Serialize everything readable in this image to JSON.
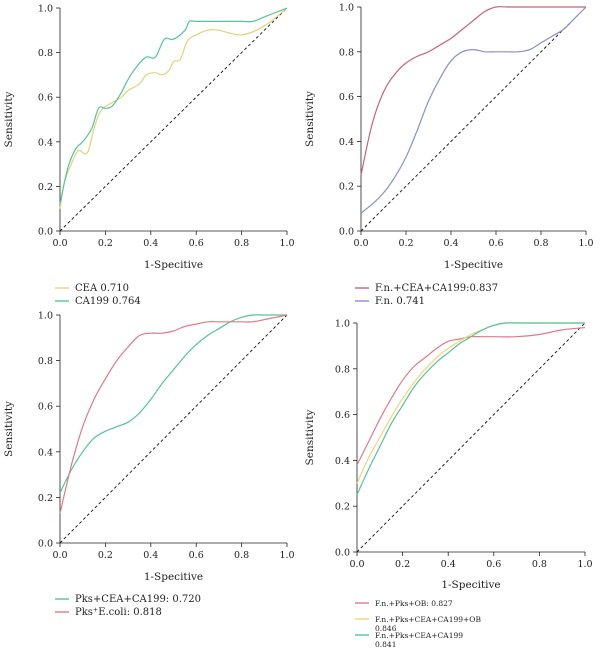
{
  "chart_data": [
    {
      "type": "line",
      "xlabel": "1-Specitive",
      "ylabel": "Sensitivity",
      "xlim": [
        0,
        1
      ],
      "ylim": [
        0,
        1
      ],
      "ticks": [
        "0.0",
        "0.2",
        "0.4",
        "0.6",
        "0.8",
        "1.0"
      ],
      "diagonal": true,
      "series": [
        {
          "name": "CEA 0.710",
          "color": "#e3d27a",
          "x": [
            0,
            0.02,
            0.05,
            0.08,
            0.12,
            0.15,
            0.18,
            0.22,
            0.27,
            0.3,
            0.35,
            0.38,
            0.42,
            0.45,
            0.48,
            0.5,
            0.53,
            0.56,
            0.6,
            0.65,
            0.7,
            0.8,
            0.9,
            1.0
          ],
          "y": [
            0.1,
            0.22,
            0.3,
            0.36,
            0.35,
            0.46,
            0.54,
            0.57,
            0.6,
            0.63,
            0.66,
            0.7,
            0.71,
            0.7,
            0.72,
            0.76,
            0.77,
            0.85,
            0.88,
            0.9,
            0.9,
            0.88,
            0.92,
            1.0
          ]
        },
        {
          "name": "CA199 0.764",
          "color": "#54c49a",
          "x": [
            0,
            0.02,
            0.04,
            0.07,
            0.1,
            0.14,
            0.17,
            0.2,
            0.23,
            0.27,
            0.3,
            0.34,
            0.38,
            0.42,
            0.46,
            0.5,
            0.55,
            0.57,
            0.6,
            0.7,
            0.8,
            0.85,
            0.9,
            0.95,
            1.0
          ],
          "y": [
            0.12,
            0.22,
            0.3,
            0.37,
            0.4,
            0.46,
            0.55,
            0.55,
            0.56,
            0.62,
            0.68,
            0.74,
            0.78,
            0.78,
            0.86,
            0.86,
            0.9,
            0.94,
            0.94,
            0.94,
            0.94,
            0.94,
            0.96,
            0.98,
            1.0
          ]
        }
      ]
    },
    {
      "type": "line",
      "xlabel": "1-Specitive",
      "ylabel": "Sensitivity",
      "xlim": [
        0,
        1
      ],
      "ylim": [
        0,
        1
      ],
      "ticks": [
        "0.0",
        "0.2",
        "0.4",
        "0.6",
        "0.8",
        "1.0"
      ],
      "diagonal": true,
      "series": [
        {
          "name": "F.n.+CEA+CA199:0.837",
          "color": "#c8627a",
          "x": [
            0,
            0.05,
            0.1,
            0.15,
            0.2,
            0.25,
            0.3,
            0.35,
            0.4,
            0.45,
            0.5,
            0.55,
            0.6,
            0.65,
            0.7,
            0.8,
            0.9,
            1.0
          ],
          "y": [
            0.25,
            0.48,
            0.62,
            0.7,
            0.75,
            0.78,
            0.8,
            0.83,
            0.86,
            0.9,
            0.94,
            0.98,
            1.0,
            1.0,
            1.0,
            1.0,
            1.0,
            1.0
          ]
        },
        {
          "name": "F.n. 0.741",
          "color": "#8a8fc8",
          "x": [
            0,
            0.05,
            0.1,
            0.15,
            0.2,
            0.25,
            0.3,
            0.35,
            0.4,
            0.45,
            0.5,
            0.55,
            0.6,
            0.65,
            0.7,
            0.75,
            0.8,
            0.85,
            0.9,
            0.95,
            1.0
          ],
          "y": [
            0.08,
            0.12,
            0.17,
            0.24,
            0.33,
            0.45,
            0.58,
            0.68,
            0.76,
            0.8,
            0.81,
            0.8,
            0.8,
            0.8,
            0.8,
            0.81,
            0.84,
            0.87,
            0.9,
            0.95,
            1.0
          ]
        }
      ]
    },
    {
      "type": "line",
      "xlabel": "1-Specitive",
      "ylabel": "Sensitivity",
      "xlim": [
        0,
        1
      ],
      "ylim": [
        0,
        1
      ],
      "ticks": [
        "0.0",
        "0.2",
        "0.4",
        "0.6",
        "0.8",
        "1.0"
      ],
      "diagonal": true,
      "series": [
        {
          "name": "Pks+CEA+CA199: 0.720",
          "color": "#54c49a",
          "x": [
            0,
            0.05,
            0.1,
            0.15,
            0.2,
            0.25,
            0.3,
            0.35,
            0.4,
            0.45,
            0.5,
            0.55,
            0.6,
            0.65,
            0.7,
            0.75,
            0.8,
            0.85,
            0.9,
            0.95,
            1.0
          ],
          "y": [
            0.22,
            0.32,
            0.4,
            0.46,
            0.49,
            0.51,
            0.53,
            0.57,
            0.63,
            0.7,
            0.76,
            0.82,
            0.87,
            0.91,
            0.94,
            0.97,
            0.99,
            1.0,
            1.0,
            1.0,
            1.0
          ]
        },
        {
          "name": "Pks⁺E.coli: 0.818",
          "color": "#e07a8a",
          "x": [
            0,
            0.05,
            0.1,
            0.15,
            0.2,
            0.25,
            0.3,
            0.35,
            0.4,
            0.45,
            0.5,
            0.55,
            0.6,
            0.65,
            0.7,
            0.75,
            0.8,
            0.85,
            0.9,
            0.95,
            1.0
          ],
          "y": [
            0.13,
            0.34,
            0.51,
            0.63,
            0.72,
            0.8,
            0.86,
            0.91,
            0.92,
            0.92,
            0.93,
            0.95,
            0.96,
            0.97,
            0.97,
            0.97,
            0.97,
            0.97,
            0.98,
            0.99,
            1.0
          ]
        }
      ]
    },
    {
      "type": "line",
      "xlabel": "1-Specitive",
      "ylabel": "Sensitivity",
      "xlim": [
        0,
        1
      ],
      "ylim": [
        0,
        1
      ],
      "ticks": [
        "0.0",
        "0.2",
        "0.4",
        "0.6",
        "0.8",
        "1.0"
      ],
      "diagonal": true,
      "series": [
        {
          "name": "F.n.+Pks+OB: 0.827",
          "color": "#e07a8a",
          "x": [
            0,
            0.05,
            0.1,
            0.15,
            0.2,
            0.25,
            0.3,
            0.35,
            0.4,
            0.45,
            0.5,
            0.55,
            0.6,
            0.7,
            0.8,
            0.9,
            1.0
          ],
          "y": [
            0.38,
            0.48,
            0.58,
            0.67,
            0.75,
            0.81,
            0.85,
            0.89,
            0.92,
            0.93,
            0.94,
            0.94,
            0.94,
            0.94,
            0.95,
            0.97,
            0.98
          ]
        },
        {
          "name": "F.n.+Pks+CEA+CA199+OB 0.846",
          "color": "#eed677",
          "x": [
            0,
            0.05,
            0.1,
            0.15,
            0.2,
            0.25,
            0.3,
            0.35,
            0.4,
            0.45,
            0.5,
            0.55,
            0.6,
            0.65,
            0.7,
            0.8,
            0.9,
            1.0
          ],
          "y": [
            0.3,
            0.41,
            0.5,
            0.59,
            0.67,
            0.74,
            0.8,
            0.85,
            0.89,
            0.92,
            0.95,
            0.97,
            0.99,
            1.0,
            1.0,
            1.0,
            1.0,
            1.0
          ]
        },
        {
          "name": "F.n.+Pks+CEA+CA199 0.841",
          "color": "#54c49a",
          "x": [
            0,
            0.05,
            0.1,
            0.15,
            0.2,
            0.25,
            0.3,
            0.35,
            0.4,
            0.45,
            0.5,
            0.55,
            0.6,
            0.65,
            0.7,
            0.8,
            0.9,
            1.0
          ],
          "y": [
            0.25,
            0.36,
            0.46,
            0.56,
            0.64,
            0.72,
            0.78,
            0.83,
            0.87,
            0.91,
            0.94,
            0.97,
            0.99,
            1.0,
            1.0,
            1.0,
            1.0,
            1.0
          ]
        }
      ]
    }
  ]
}
